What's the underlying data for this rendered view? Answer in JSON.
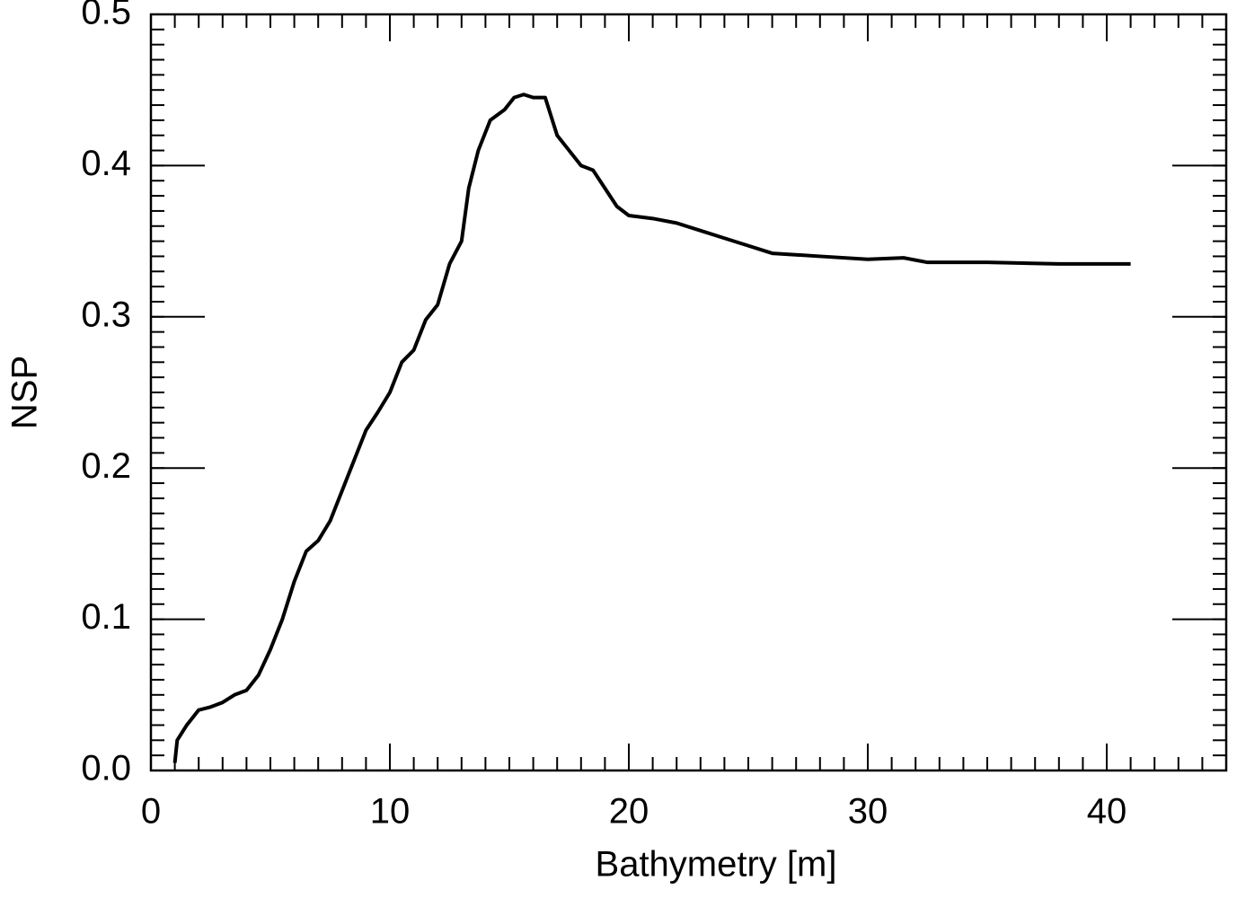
{
  "chart_data": {
    "type": "line",
    "xlabel": "Bathymetry [m]",
    "ylabel": "NSP",
    "xlim": [
      0,
      45
    ],
    "xticks": [
      0,
      10,
      20,
      30,
      40
    ],
    "ylim": [
      0,
      0.5
    ],
    "yticks": [
      {
        "value": 0,
        "label": "0.0"
      },
      0.1,
      0.2,
      0.3,
      0.4,
      0.5
    ],
    "grid": false,
    "series": [
      {
        "color": "#000000",
        "x": [
          1.0,
          1.1,
          1.5,
          2.0,
          2.5,
          3.0,
          3.5,
          4.0,
          4.5,
          5.0,
          5.5,
          6.0,
          6.5,
          7.0,
          7.5,
          8.0,
          8.5,
          9.0,
          9.5,
          10.0,
          10.5,
          11.0,
          11.5,
          12.0,
          12.5,
          13.0,
          13.3,
          13.7,
          14.2,
          14.8,
          15.2,
          15.6,
          16.0,
          16.5,
          17.0,
          17.5,
          18.0,
          18.5,
          19.0,
          19.5,
          20.0,
          21.0,
          22.0,
          23.0,
          24.0,
          25.0,
          26.0,
          28.0,
          30.0,
          31.5,
          32.5,
          35.0,
          38.0,
          41.0
        ],
        "values": [
          0.005,
          0.02,
          0.03,
          0.04,
          0.042,
          0.045,
          0.05,
          0.053,
          0.063,
          0.08,
          0.1,
          0.125,
          0.145,
          0.152,
          0.165,
          0.185,
          0.205,
          0.225,
          0.237,
          0.25,
          0.27,
          0.278,
          0.298,
          0.308,
          0.335,
          0.35,
          0.385,
          0.41,
          0.43,
          0.437,
          0.445,
          0.447,
          0.445,
          0.445,
          0.42,
          0.41,
          0.4,
          0.397,
          0.385,
          0.373,
          0.367,
          0.365,
          0.362,
          0.357,
          0.352,
          0.347,
          0.342,
          0.34,
          0.338,
          0.339,
          0.336,
          0.336,
          0.335,
          0.335
        ]
      }
    ]
  }
}
